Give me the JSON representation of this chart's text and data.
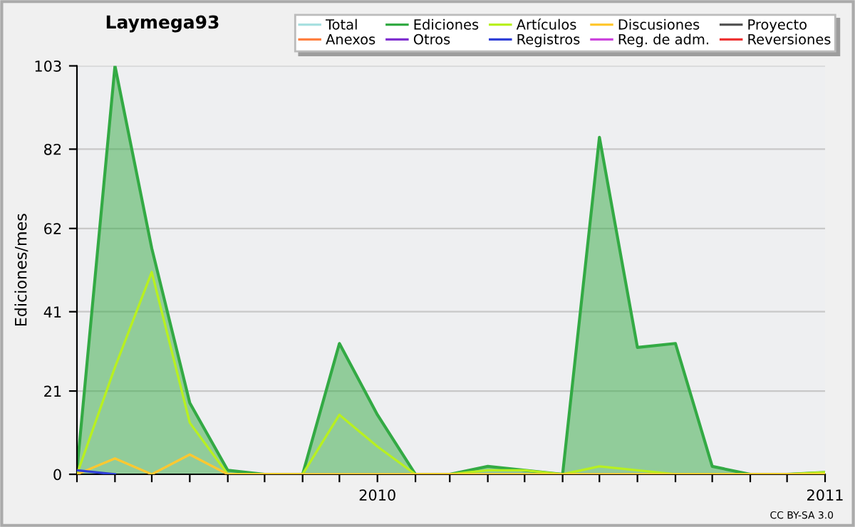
{
  "chart_data": {
    "type": "line",
    "title": "Laymega93",
    "ylabel": "Ediciones/mes",
    "x": [
      "2009-05",
      "2009-06",
      "2009-07",
      "2009-08",
      "2009-09",
      "2009-10",
      "2009-11",
      "2009-12",
      "2010-01",
      "2010-02",
      "2010-03",
      "2010-04",
      "2010-05",
      "2010-06",
      "2010-07",
      "2010-08",
      "2010-09",
      "2010-10",
      "2010-11",
      "2010-12",
      "2011-01"
    ],
    "series": [
      {
        "name": "Total",
        "color": "#a8e0e0",
        "values": [
          null,
          null,
          null,
          null,
          null,
          null,
          null,
          null,
          null,
          null,
          null,
          null,
          null,
          null,
          null,
          null,
          null,
          null,
          null,
          null,
          null
        ]
      },
      {
        "name": "Ediciones",
        "color": "#33aa44",
        "type": "area",
        "values": [
          1,
          103,
          57,
          18,
          1,
          0,
          0,
          33,
          15,
          0,
          0,
          2,
          1,
          0,
          85,
          32,
          33,
          2,
          0,
          0,
          0.5
        ]
      },
      {
        "name": "Artículos",
        "color": "#b8f020",
        "values": [
          0,
          27,
          51,
          13,
          0,
          0,
          0,
          15,
          7,
          0,
          0,
          1,
          1,
          0,
          2,
          1,
          0,
          0,
          0,
          0,
          0.5
        ]
      },
      {
        "name": "Discusiones",
        "color": "#ffc830",
        "values": [
          0,
          4,
          0,
          5,
          0,
          0,
          0,
          0,
          0,
          0,
          0,
          0,
          0,
          0,
          0,
          0,
          0,
          0,
          0,
          0,
          0
        ]
      },
      {
        "name": "Proyecto",
        "color": "#555555",
        "values": [
          null,
          null,
          null,
          null,
          null,
          null,
          null,
          null,
          null,
          null,
          null,
          null,
          null,
          null,
          null,
          null,
          null,
          null,
          null,
          null,
          null
        ]
      },
      {
        "name": "Anexos",
        "color": "#ff8040",
        "values": [
          null,
          null,
          null,
          null,
          null,
          null,
          null,
          null,
          null,
          null,
          null,
          null,
          null,
          null,
          null,
          null,
          null,
          null,
          null,
          null,
          null
        ]
      },
      {
        "name": "Otros",
        "color": "#8030d0",
        "values": [
          null,
          null,
          null,
          null,
          null,
          null,
          null,
          null,
          null,
          null,
          null,
          null,
          null,
          null,
          null,
          null,
          null,
          null,
          null,
          null,
          null
        ]
      },
      {
        "name": "Registros",
        "color": "#3040d8",
        "values": [
          1,
          0,
          null,
          null,
          null,
          null,
          null,
          null,
          null,
          null,
          null,
          null,
          null,
          null,
          null,
          null,
          null,
          null,
          null,
          null,
          null
        ]
      },
      {
        "name": "Reg. de adm.",
        "color": "#cc44dd",
        "values": [
          null,
          null,
          null,
          null,
          null,
          null,
          null,
          null,
          null,
          null,
          null,
          null,
          null,
          null,
          null,
          null,
          null,
          null,
          null,
          null,
          null
        ]
      },
      {
        "name": "Reversiones",
        "color": "#ee3333",
        "values": [
          null,
          null,
          null,
          null,
          null,
          null,
          null,
          null,
          null,
          null,
          null,
          null,
          null,
          null,
          null,
          null,
          null,
          null,
          null,
          null,
          null
        ]
      }
    ],
    "xlim": [
      "2009-05",
      "2011-01"
    ],
    "xticks": [
      {
        "value": "2009-05",
        "label": null
      },
      {
        "value": "2009-06",
        "label": null
      },
      {
        "value": "2009-07",
        "label": null
      },
      {
        "value": "2009-08",
        "label": null
      },
      {
        "value": "2009-09",
        "label": null
      },
      {
        "value": "2009-10",
        "label": null
      },
      {
        "value": "2009-11",
        "label": null
      },
      {
        "value": "2009-12",
        "label": null
      },
      {
        "value": "2010-01",
        "label": "2010"
      },
      {
        "value": "2010-02",
        "label": null
      },
      {
        "value": "2010-03",
        "label": null
      },
      {
        "value": "2010-04",
        "label": null
      },
      {
        "value": "2010-05",
        "label": null
      },
      {
        "value": "2010-06",
        "label": null
      },
      {
        "value": "2010-07",
        "label": null
      },
      {
        "value": "2010-08",
        "label": null
      },
      {
        "value": "2010-09",
        "label": null
      },
      {
        "value": "2010-10",
        "label": null
      },
      {
        "value": "2010-11",
        "label": null
      },
      {
        "value": "2010-12",
        "label": null
      },
      {
        "value": "2011-01",
        "label": "2011"
      }
    ],
    "ylim": [
      0,
      103
    ],
    "yticks": [
      0,
      21,
      41,
      62,
      82,
      103
    ],
    "grid": "y",
    "legend": "top right",
    "marker": "none",
    "line_style": "solid",
    "annotations": [
      "CC BY-SA 3.0"
    ]
  }
}
